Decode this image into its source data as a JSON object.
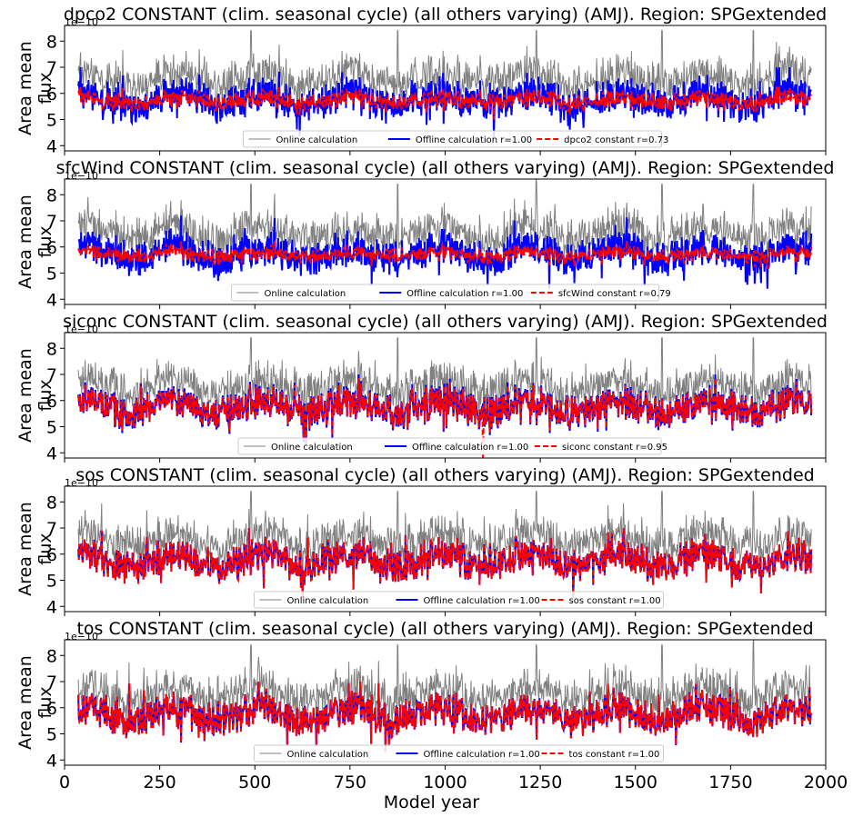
{
  "figure": {
    "xlabel": "Model year",
    "x_tick_labels": [
      "0",
      "250",
      "500",
      "750",
      "1000",
      "1250",
      "1500",
      "1750",
      "2000"
    ],
    "y_tick_labels": [
      "4",
      "5",
      "6",
      "7",
      "8"
    ],
    "offset_text": "1e−10",
    "ylabel_line1": "Area mean",
    "ylabel_line2": "flux"
  },
  "colors": {
    "online": "#808080",
    "offline": "#0000ff",
    "constant": "#ff0000"
  },
  "chart_data": [
    {
      "type": "line",
      "title": "dpco2 CONSTANT (clim. seasonal cycle) (all others varying) (AMJ). Region: SPGextended",
      "xlabel": "",
      "ylabel": "Area mean flux",
      "offset_text": "1e−10",
      "xlim": [
        0,
        2000
      ],
      "ylim": [
        3.8,
        8.6
      ],
      "x_range": [
        36,
        1962
      ],
      "series": [
        {
          "name": "Online calculation",
          "style": "solid-thin",
          "color": "#808080",
          "approx_range": [
            5.3,
            8.4
          ]
        },
        {
          "name": "Offline calculation r=1.00",
          "style": "solid",
          "color": "#0000ff",
          "approx_range": [
            4.3,
            7.0
          ]
        },
        {
          "name": "dpco2 constant r=0.73",
          "style": "dashed",
          "color": "#ff0000",
          "approx_range": [
            4.9,
            6.8
          ]
        }
      ],
      "legend": "bottom-center"
    },
    {
      "type": "line",
      "title": "sfcWind CONSTANT (clim. seasonal cycle) (all others varying) (AMJ). Region: SPGextended",
      "xlabel": "",
      "ylabel": "Area mean flux",
      "offset_text": "1e−10",
      "xlim": [
        0,
        2000
      ],
      "ylim": [
        3.8,
        8.6
      ],
      "x_range": [
        36,
        1962
      ],
      "series": [
        {
          "name": "Online calculation",
          "style": "solid-thin",
          "color": "#808080",
          "approx_range": [
            5.3,
            8.4
          ]
        },
        {
          "name": "Offline calculation r=1.00",
          "style": "solid",
          "color": "#0000ff",
          "approx_range": [
            4.3,
            7.5
          ]
        },
        {
          "name": "sfcWind constant r=0.79",
          "style": "dashed",
          "color": "#ff0000",
          "approx_range": [
            4.6,
            6.4
          ]
        }
      ],
      "legend": "bottom-center"
    },
    {
      "type": "line",
      "title": "siconc CONSTANT (clim. seasonal cycle) (all others varying) (AMJ). Region: SPGextended",
      "xlabel": "",
      "ylabel": "Area mean flux",
      "offset_text": "1e−10",
      "xlim": [
        0,
        2000
      ],
      "ylim": [
        3.8,
        8.6
      ],
      "x_range": [
        36,
        1962
      ],
      "series": [
        {
          "name": "Online calculation",
          "style": "solid-thin",
          "color": "#808080",
          "approx_range": [
            5.3,
            8.4
          ]
        },
        {
          "name": "Offline calculation r=1.00",
          "style": "solid",
          "color": "#0000ff",
          "approx_range": [
            4.3,
            7.0
          ]
        },
        {
          "name": "siconc constant r=0.95",
          "style": "dashed",
          "color": "#ff0000",
          "approx_range": [
            4.3,
            7.0
          ]
        }
      ],
      "legend": "bottom-center"
    },
    {
      "type": "line",
      "title": "sos CONSTANT (clim. seasonal cycle) (all others varying) (AMJ). Region: SPGextended",
      "xlabel": "",
      "ylabel": "Area mean flux",
      "offset_text": "1e−10",
      "xlim": [
        0,
        2000
      ],
      "ylim": [
        3.8,
        8.6
      ],
      "x_range": [
        36,
        1962
      ],
      "series": [
        {
          "name": "Online calculation",
          "style": "solid-thin",
          "color": "#808080",
          "approx_range": [
            5.3,
            8.4
          ]
        },
        {
          "name": "Offline calculation r=1.00",
          "style": "solid",
          "color": "#0000ff",
          "approx_range": [
            4.3,
            7.0
          ]
        },
        {
          "name": "sos constant r=1.00",
          "style": "dashed",
          "color": "#ff0000",
          "approx_range": [
            4.3,
            7.0
          ]
        }
      ],
      "legend": "bottom-center"
    },
    {
      "type": "line",
      "title": "tos CONSTANT (clim. seasonal cycle) (all others varying) (AMJ). Region: SPGextended",
      "xlabel": "Model year",
      "ylabel": "Area mean flux",
      "offset_text": "1e−10",
      "xlim": [
        0,
        2000
      ],
      "ylim": [
        3.8,
        8.6
      ],
      "x_range": [
        36,
        1962
      ],
      "series": [
        {
          "name": "Online calculation",
          "style": "solid-thin",
          "color": "#808080",
          "approx_range": [
            5.3,
            8.4
          ]
        },
        {
          "name": "Offline calculation r=1.00",
          "style": "solid",
          "color": "#0000ff",
          "approx_range": [
            4.3,
            7.0
          ]
        },
        {
          "name": "tos constant r=1.00",
          "style": "dashed",
          "color": "#ff0000",
          "approx_range": [
            4.3,
            7.0
          ]
        }
      ],
      "legend": "bottom-center"
    }
  ]
}
